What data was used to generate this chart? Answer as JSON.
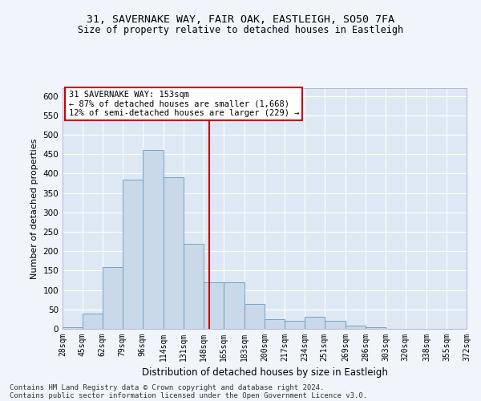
{
  "title1": "31, SAVERNAKE WAY, FAIR OAK, EASTLEIGH, SO50 7FA",
  "title2": "Size of property relative to detached houses in Eastleigh",
  "xlabel": "Distribution of detached houses by size in Eastleigh",
  "ylabel": "Number of detached properties",
  "footer1": "Contains HM Land Registry data © Crown copyright and database right 2024.",
  "footer2": "Contains public sector information licensed under the Open Government Licence v3.0.",
  "annotation_line1": "31 SAVERNAKE WAY: 153sqm",
  "annotation_line2": "← 87% of detached houses are smaller (1,668)",
  "annotation_line3": "12% of semi-detached houses are larger (229) →",
  "bin_labels": [
    "28sqm",
    "45sqm",
    "62sqm",
    "79sqm",
    "96sqm",
    "114sqm",
    "131sqm",
    "148sqm",
    "165sqm",
    "183sqm",
    "200sqm",
    "217sqm",
    "234sqm",
    "251sqm",
    "269sqm",
    "286sqm",
    "303sqm",
    "320sqm",
    "338sqm",
    "355sqm",
    "372sqm"
  ],
  "bin_edges": [
    28,
    45,
    62,
    79,
    96,
    114,
    131,
    148,
    165,
    183,
    200,
    217,
    234,
    251,
    269,
    286,
    303,
    320,
    338,
    355,
    372
  ],
  "bar_values": [
    5,
    40,
    160,
    385,
    460,
    390,
    220,
    120,
    120,
    65,
    25,
    20,
    30,
    20,
    8,
    5,
    0,
    0,
    0,
    0
  ],
  "bar_color": "#c9d9ea",
  "bar_edge_color": "#6699bb",
  "vline_x": 153,
  "vline_color": "#cc0000",
  "bg_color": "#eaf0f8",
  "plot_bg_color": "#dde8f4",
  "ylim": [
    0,
    620
  ],
  "yticks": [
    0,
    50,
    100,
    150,
    200,
    250,
    300,
    350,
    400,
    450,
    500,
    550,
    600
  ],
  "annotation_box_color": "#cc0000"
}
